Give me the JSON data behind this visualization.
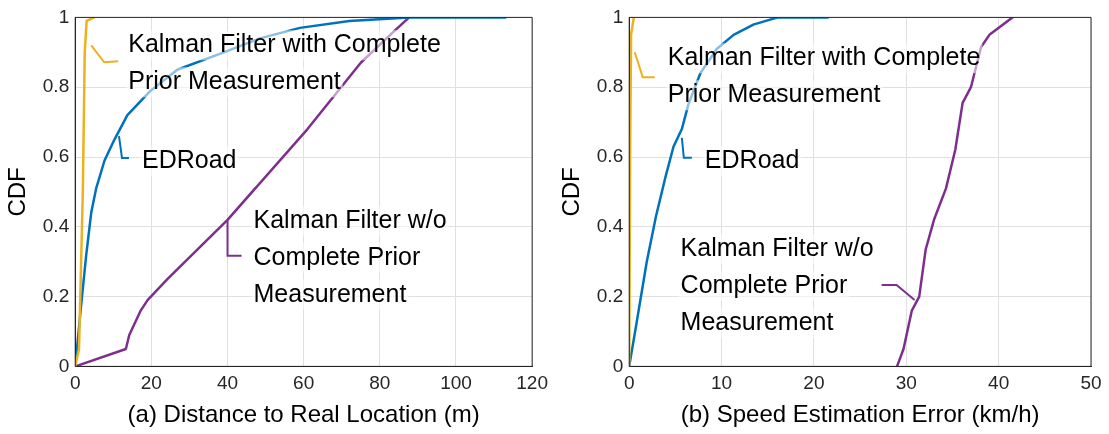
{
  "chart_data": [
    {
      "type": "line",
      "xlabel": "(a) Distance to Real Location (m)",
      "ylabel": "CDF",
      "xlim": [
        0,
        120
      ],
      "xticks": [
        0,
        20,
        40,
        60,
        80,
        100,
        120
      ],
      "ylim": [
        0,
        1
      ],
      "yticks": [
        0,
        0.2,
        0.4,
        0.6,
        0.8,
        1
      ],
      "grid": true,
      "marker": "none",
      "line_style": "solid",
      "series": [
        {
          "color": "#edb120",
          "x": [
            0,
            1,
            2,
            2.5,
            3,
            5
          ],
          "values": [
            0,
            0.05,
            0.5,
            0.9,
            0.99,
            1
          ]
        },
        {
          "color": "#0072bd",
          "x": [
            0,
            1.6,
            2.9,
            4.2,
            5.5,
            7.7,
            10.3,
            13.7,
            19.8,
            26.8,
            39,
            48.5,
            59,
            72,
            87.7,
            113
          ],
          "values": [
            0,
            0.18,
            0.32,
            0.44,
            0.51,
            0.59,
            0.65,
            0.72,
            0.79,
            0.85,
            0.9,
            0.94,
            0.97,
            0.99,
            1,
            1
          ]
        },
        {
          "color": "#7e2f8e",
          "x": [
            0,
            13.3,
            14.2,
            17.2,
            19,
            24.2,
            40,
            61,
            75,
            83.7,
            87.7
          ],
          "values": [
            0,
            0.05,
            0.09,
            0.16,
            0.19,
            0.25,
            0.42,
            0.68,
            0.87,
            0.96,
            1
          ]
        }
      ],
      "annotations": [
        {
          "text": "Kalman Filter with Complete\nPrior Measurement",
          "x": 4.2,
          "y": 0.92
        },
        {
          "text": "EDRoad",
          "x": 11.5,
          "y": 0.66
        },
        {
          "text": "Kalman Filter w/o\nComplete Prior\nMeasurement",
          "x": 40,
          "y": 0.42
        }
      ]
    },
    {
      "type": "line",
      "xlabel": "(b) Speed Estimation Error (km/h)",
      "ylabel": "CDF",
      "xlim": [
        0,
        50
      ],
      "xticks": [
        0,
        10,
        20,
        30,
        40,
        50
      ],
      "ylim": [
        0,
        1
      ],
      "yticks": [
        0,
        0.2,
        0.4,
        0.6,
        0.8,
        1
      ],
      "grid": true,
      "marker": "none",
      "line_style": "solid",
      "series": [
        {
          "color": "#edb120",
          "x": [
            0,
            0.1,
            0.2,
            0.5
          ],
          "values": [
            0,
            0.6,
            0.95,
            1
          ]
        },
        {
          "color": "#0072bd",
          "x": [
            0,
            0.8,
            1.9,
            2.9,
            3.9,
            4.8,
            5.7,
            6.4,
            7.7,
            9.5,
            11.3,
            13.5,
            16.1,
            21.5
          ],
          "values": [
            0,
            0.125,
            0.3,
            0.43,
            0.54,
            0.63,
            0.68,
            0.75,
            0.84,
            0.91,
            0.95,
            0.98,
            1,
            1
          ]
        },
        {
          "color": "#7e2f8e",
          "x": [
            29,
            29.7,
            30.6,
            31.4,
            32.1,
            33,
            34.3,
            35.3,
            36.1,
            37,
            38.1,
            39,
            41.5
          ],
          "values": [
            0,
            0.05,
            0.16,
            0.2,
            0.335,
            0.42,
            0.51,
            0.62,
            0.755,
            0.8,
            0.915,
            0.95,
            1
          ]
        }
      ],
      "annotations": [
        {
          "text": "Kalman Filter with Complete\nPrior Measurement",
          "x": 0.6,
          "y": 0.9
        },
        {
          "text": "EDRoad",
          "x": 5.7,
          "y": 0.655
        },
        {
          "text": "Kalman Filter w/o\nComplete Prior\nMeasurement",
          "x": 30.9,
          "y": 0.19
        }
      ]
    }
  ]
}
